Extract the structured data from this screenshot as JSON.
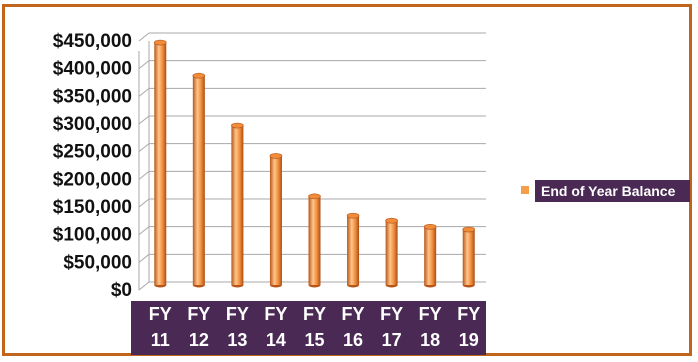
{
  "chart_data": {
    "type": "bar",
    "categories": [
      [
        "FY",
        "11"
      ],
      [
        "FY",
        "12"
      ],
      [
        "FY",
        "13"
      ],
      [
        "FY",
        "14"
      ],
      [
        "FY",
        "15"
      ],
      [
        "FY",
        "16"
      ],
      [
        "FY",
        "17"
      ],
      [
        "FY",
        "18"
      ],
      [
        "FY",
        "19"
      ]
    ],
    "series": [
      {
        "name": "End of Year Balance",
        "values": [
          440000,
          380000,
          290000,
          235000,
          162000,
          127000,
          118000,
          107000,
          102000
        ]
      }
    ],
    "ytick_labels": [
      "$0",
      "$50,000",
      "$100,000",
      "$150,000",
      "$200,000",
      "$250,000",
      "$300,000",
      "$350,000",
      "$400,000",
      "$450,000"
    ],
    "ytick_values": [
      0,
      50000,
      100000,
      150000,
      200000,
      250000,
      300000,
      350000,
      400000,
      450000
    ],
    "ylim": [
      0,
      450000
    ],
    "grid": true,
    "legend_position": "right",
    "style": "3d-cylinder"
  },
  "colors": {
    "frame_border": "#c0651b",
    "bar_dark": "#b8561a",
    "bar_light": "#ffc58a",
    "bar_mid": "#f08c3a",
    "axis_label_bg": "#4a2a55",
    "gridline": "#a8a8a8",
    "legend_swatch": "#f4a04a"
  }
}
